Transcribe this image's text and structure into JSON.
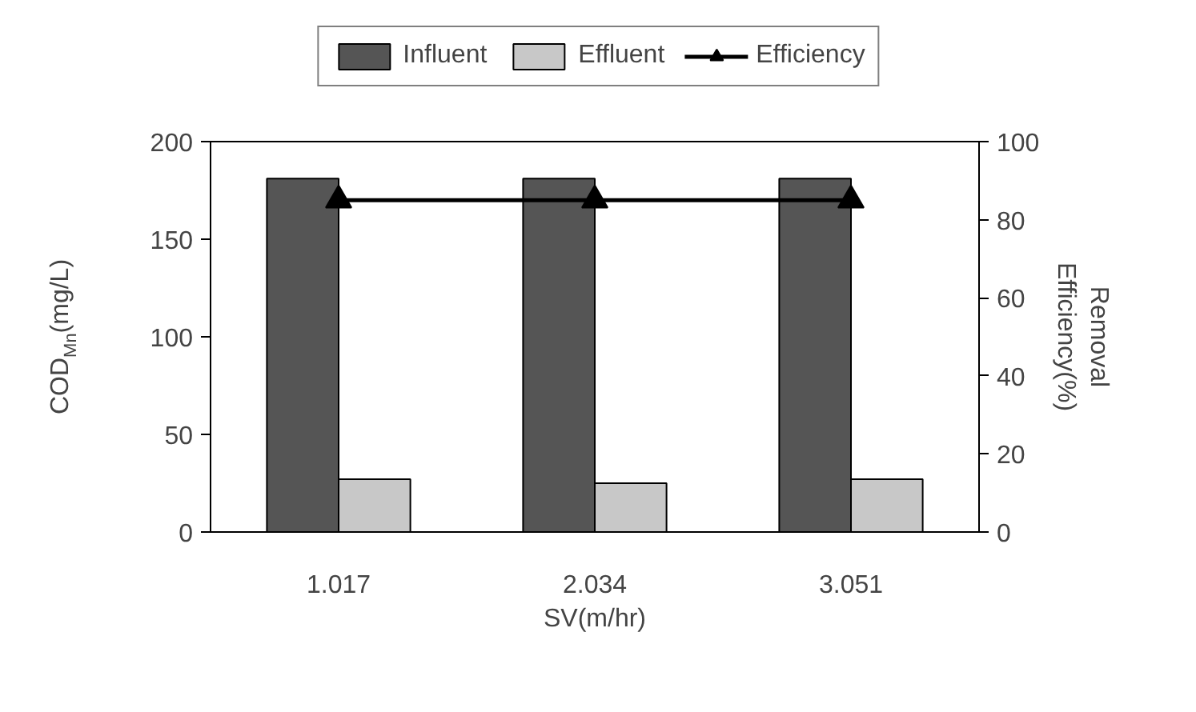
{
  "chart_data": {
    "type": "bar",
    "xlabel": "SV(m/hr)",
    "ylabel": "COD$_{Mn}$(mg/L)",
    "y2label": "Removal\nEfficiency(%)",
    "categories": [
      "1.017",
      "2.034",
      "3.051"
    ],
    "series": [
      {
        "name": "Influent",
        "color": "#555555",
        "values": [
          181,
          181,
          181
        ]
      },
      {
        "name": "Effluent",
        "color": "#c8c8c8",
        "values": [
          27,
          25,
          27
        ]
      },
      {
        "name": "Efficiency",
        "type": "line",
        "axis": "y2",
        "color": "#000000",
        "marker": "triangle",
        "values": [
          85,
          85,
          85
        ]
      }
    ],
    "ylim": [
      0,
      200
    ],
    "yticks": [
      0,
      50,
      100,
      150,
      200
    ],
    "y2lim": [
      0,
      100
    ],
    "y2ticks": [
      0,
      20,
      40,
      60,
      80,
      100
    ],
    "grid": false,
    "legend": "top"
  }
}
